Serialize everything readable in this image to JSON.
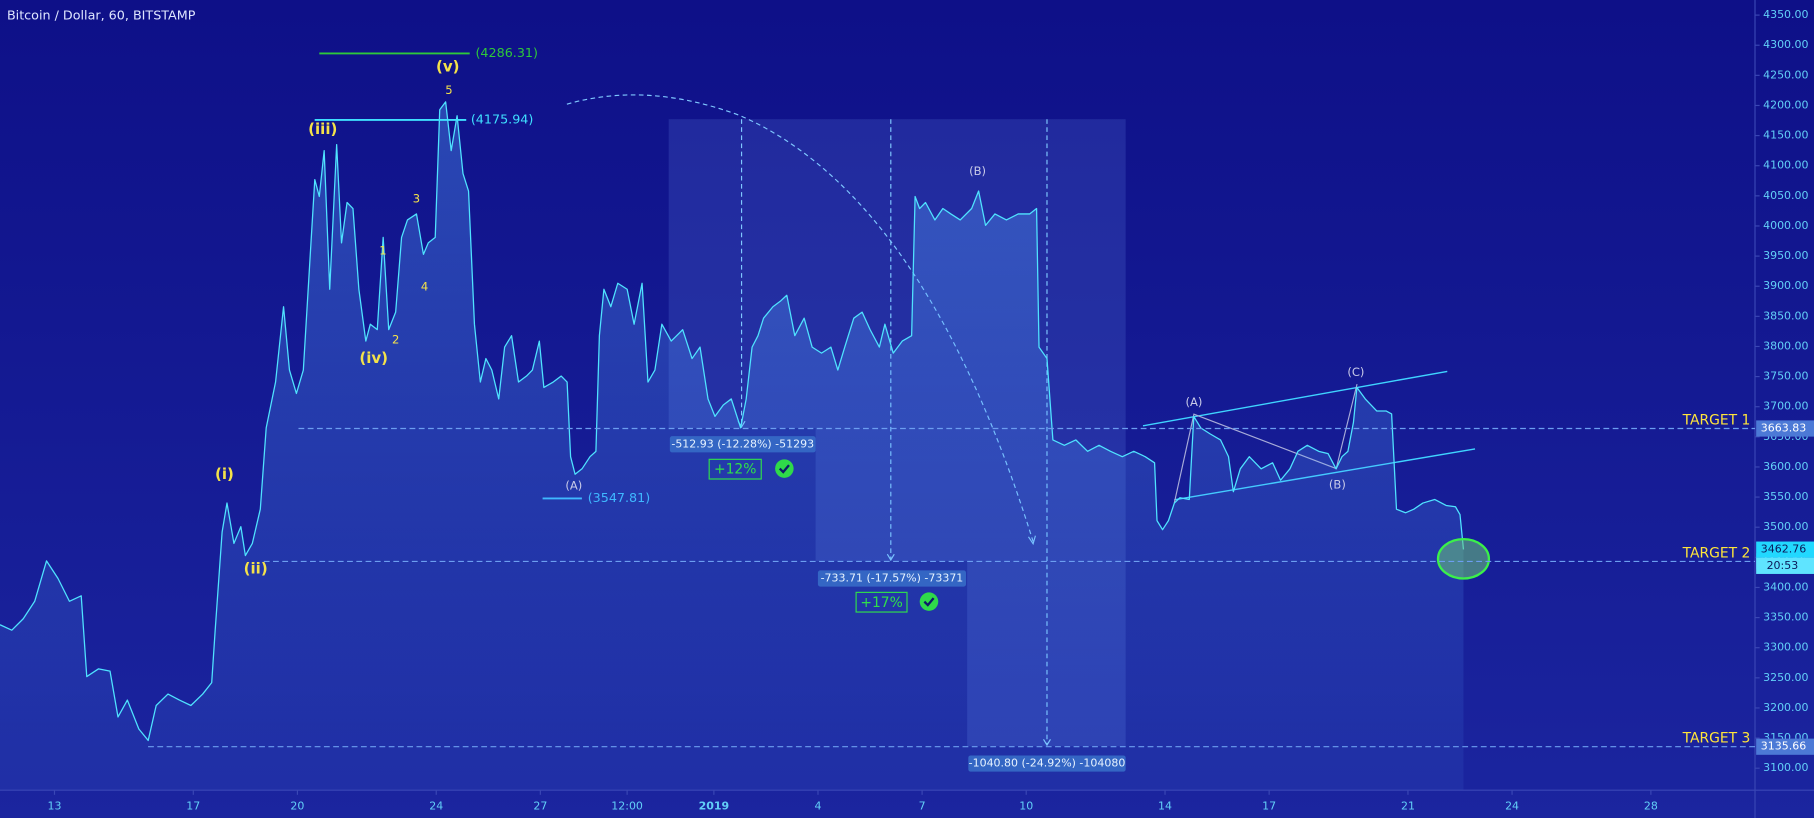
{
  "chart_data": {
    "type": "line",
    "title": "Bitcoin / Dollar, 60, BITSTAMP",
    "color": "#4fe3ff",
    "grid": false,
    "xlim": [
      11.43,
      62
    ],
    "ylim": [
      3063.5,
      4375
    ],
    "xticks": [
      13,
      17,
      20,
      24,
      27,
      {
        "value": 29.5,
        "label": "12:00"
      },
      {
        "value": 32,
        "label": "2019"
      },
      {
        "value": 35,
        "label": "4"
      },
      {
        "value": 38,
        "label": "7"
      },
      {
        "value": 41,
        "label": "10"
      },
      {
        "value": 45,
        "label": "14"
      },
      {
        "value": 48,
        "label": "17"
      },
      {
        "value": 52,
        "label": "21"
      },
      {
        "value": 55,
        "label": "24"
      },
      {
        "value": 59,
        "label": "28"
      }
    ],
    "yticks": [
      {
        "value": 3100,
        "label": "3100.00"
      },
      {
        "value": 3150,
        "label": "3150.00"
      },
      {
        "value": 3200,
        "label": "3200.00"
      },
      {
        "value": 3250,
        "label": "3250.00"
      },
      {
        "value": 3300,
        "label": "3300.00"
      },
      {
        "value": 3350,
        "label": "3350.00"
      },
      {
        "value": 3400,
        "label": "3400.00"
      },
      {
        "value": 3450,
        "label": "3450.00"
      },
      {
        "value": 3500,
        "label": "3500.00"
      },
      {
        "value": 3550,
        "label": "3550.00"
      },
      {
        "value": 3600,
        "label": "3600.00"
      },
      {
        "value": 3650,
        "label": "3650.00"
      },
      {
        "value": 3700,
        "label": "3700.00"
      },
      {
        "value": 3750,
        "label": "3750.00"
      },
      {
        "value": 3800,
        "label": "3800.00"
      },
      {
        "value": 3850,
        "label": "3850.00"
      },
      {
        "value": 3900,
        "label": "3900.00"
      },
      {
        "value": 3950,
        "label": "3950.00"
      },
      {
        "value": 4000,
        "label": "4000.00"
      },
      {
        "value": 4050,
        "label": "4050.00"
      },
      {
        "value": 4100,
        "label": "4100.00"
      },
      {
        "value": 4150,
        "label": "4150.00"
      },
      {
        "value": 4200,
        "label": "4200.00"
      },
      {
        "value": 4250,
        "label": "4250.00"
      },
      {
        "value": 4300,
        "label": "4300.00"
      },
      {
        "value": 4350,
        "label": "4350.00"
      }
    ],
    "x": [
      11.43,
      11.77,
      12.1,
      12.43,
      12.77,
      13.1,
      13.43,
      13.77,
      13.93,
      14.27,
      14.6,
      14.83,
      15.1,
      15.43,
      15.7,
      15.93,
      16.27,
      16.6,
      16.93,
      17.27,
      17.53,
      17.63,
      17.83,
      17.97,
      18.17,
      18.37,
      18.5,
      18.7,
      18.93,
      19.1,
      19.37,
      19.6,
      19.77,
      19.97,
      20.17,
      20.37,
      20.5,
      20.63,
      20.77,
      20.93,
      21.13,
      21.27,
      21.43,
      21.6,
      21.77,
      21.97,
      22.1,
      22.3,
      22.47,
      22.63,
      22.83,
      23,
      23.17,
      23.43,
      23.63,
      23.77,
      23.97,
      24.1,
      24.27,
      24.43,
      24.6,
      24.77,
      24.93,
      25.1,
      25.27,
      25.43,
      25.6,
      25.8,
      25.97,
      26.17,
      26.37,
      26.6,
      26.77,
      26.97,
      27.1,
      27.37,
      27.6,
      27.77,
      27.87,
      28,
      28.2,
      28.43,
      28.6,
      28.7,
      28.83,
      29.03,
      29.23,
      29.5,
      29.7,
      29.93,
      30.1,
      30.3,
      30.5,
      30.77,
      31.1,
      31.37,
      31.6,
      31.83,
      32.03,
      32.27,
      32.5,
      32.77,
      32.93,
      33.1,
      33.27,
      33.43,
      33.7,
      33.93,
      34.1,
      34.33,
      34.6,
      34.83,
      35.1,
      35.37,
      35.57,
      35.77,
      36.03,
      36.27,
      36.5,
      36.77,
      36.93,
      37.17,
      37.43,
      37.7,
      37.8,
      37.93,
      38.1,
      38.37,
      38.6,
      38.83,
      39.1,
      39.43,
      39.63,
      39.83,
      40.1,
      40.43,
      40.77,
      41.1,
      41.3,
      41.37,
      41.6,
      41.77,
      42.1,
      42.43,
      42.77,
      43.1,
      43.43,
      43.77,
      44.1,
      44.43,
      44.7,
      44.77,
      44.93,
      45.1,
      45.27,
      45.43,
      45.7,
      45.83,
      46.03,
      46.3,
      46.6,
      46.83,
      46.97,
      47.17,
      47.43,
      47.77,
      48.1,
      48.33,
      48.6,
      48.83,
      49.1,
      49.43,
      49.7,
      49.93,
      50.1,
      50.27,
      50.43,
      50.53,
      50.77,
      51.1,
      51.37,
      51.53,
      51.67,
      51.93,
      52.17,
      52.43,
      52.77,
      53.1,
      53.37,
      53.5,
      53.6
    ],
    "values": [
      3338,
      3329,
      3348,
      3377,
      3444,
      3415,
      3377,
      3386,
      3252,
      3265,
      3261,
      3185,
      3213,
      3165,
      3146,
      3204,
      3223,
      3213,
      3204,
      3223,
      3242,
      3329,
      3492,
      3540,
      3473,
      3501,
      3453,
      3473,
      3530,
      3665,
      3741,
      3866,
      3761,
      3722,
      3761,
      3953,
      4077,
      4049,
      4125,
      3895,
      4135,
      3972,
      4039,
      4029,
      3895,
      3809,
      3837,
      3828,
      3981,
      3828,
      3857,
      3981,
      4010,
      4020,
      3953,
      3972,
      3981,
      4193,
      4206,
      4125,
      4183,
      4087,
      4058,
      3837,
      3741,
      3780,
      3761,
      3713,
      3799,
      3818,
      3741,
      3751,
      3761,
      3809,
      3732,
      3741,
      3751,
      3741,
      3617,
      3588,
      3597,
      3617,
      3626,
      3818,
      3895,
      3866,
      3905,
      3895,
      3837,
      3905,
      3741,
      3761,
      3837,
      3809,
      3828,
      3780,
      3799,
      3713,
      3684,
      3703,
      3713,
      3665,
      3713,
      3799,
      3818,
      3847,
      3866,
      3876,
      3885,
      3818,
      3847,
      3799,
      3789,
      3799,
      3761,
      3799,
      3847,
      3857,
      3828,
      3799,
      3837,
      3789,
      3809,
      3818,
      4049,
      4029,
      4039,
      4010,
      4029,
      4020,
      4010,
      4029,
      4058,
      4001,
      4020,
      4010,
      4020,
      4020,
      4029,
      3799,
      3780,
      3645,
      3636,
      3645,
      3626,
      3636,
      3626,
      3617,
      3626,
      3617,
      3607,
      3511,
      3496,
      3511,
      3540,
      3549,
      3546,
      3684,
      3665,
      3655,
      3645,
      3617,
      3559,
      3597,
      3617,
      3597,
      3607,
      3578,
      3597,
      3626,
      3636,
      3626,
      3622,
      3597,
      3617,
      3626,
      3674,
      3732,
      3713,
      3693,
      3693,
      3688,
      3530,
      3524,
      3530,
      3540,
      3546,
      3536,
      3534,
      3521,
      3463
    ],
    "price_lines": [
      {
        "label": "(4286.31)",
        "value": 4286.31,
        "color": "#2ec93a"
      },
      {
        "label": "(4175.94)",
        "value": 4175.94,
        "color": "#3fe0ff"
      },
      {
        "label": "(3547.81)",
        "value": 3547.81,
        "color": "#3fb8ff"
      }
    ],
    "targets": [
      {
        "label": "TARGET 1",
        "value": 3663.83
      },
      {
        "label": "TARGET 2",
        "value": 3443.16
      },
      {
        "label": "TARGET 3",
        "value": 3135.66
      }
    ],
    "last_price": {
      "value": 3462.76,
      "countdown": "20:53"
    },
    "measurements": [
      {
        "text": "-512.93 (-12.28%) -51293",
        "result": "+12%"
      },
      {
        "text": "-733.71 (-17.57%) -73371",
        "result": "+17%"
      },
      {
        "text": "-1040.80 (-24.92%) -104080"
      }
    ],
    "annotations": [
      {
        "text": "(i)",
        "color": "#f4e24a"
      },
      {
        "text": "(ii)",
        "color": "#f4e24a"
      },
      {
        "text": "(iii)",
        "color": "#f4e24a"
      },
      {
        "text": "(iv)",
        "color": "#f4e24a"
      },
      {
        "text": "(v)",
        "color": "#f4e24a"
      },
      {
        "text": "1",
        "color": "#f4e24a"
      },
      {
        "text": "2",
        "color": "#f4e24a"
      },
      {
        "text": "3",
        "color": "#f4e24a"
      },
      {
        "text": "4",
        "color": "#f4e24a"
      },
      {
        "text": "5",
        "color": "#f4e24a"
      },
      {
        "text": "(A)",
        "color": "#c9cbe8"
      },
      {
        "text": "(B)",
        "color": "#c9cbe8"
      },
      {
        "text": "(A)",
        "color": "#c9cbe8"
      },
      {
        "text": "(C)",
        "color": "#c9cbe8"
      },
      {
        "text": "(B)",
        "color": "#c9cbe8"
      }
    ]
  }
}
